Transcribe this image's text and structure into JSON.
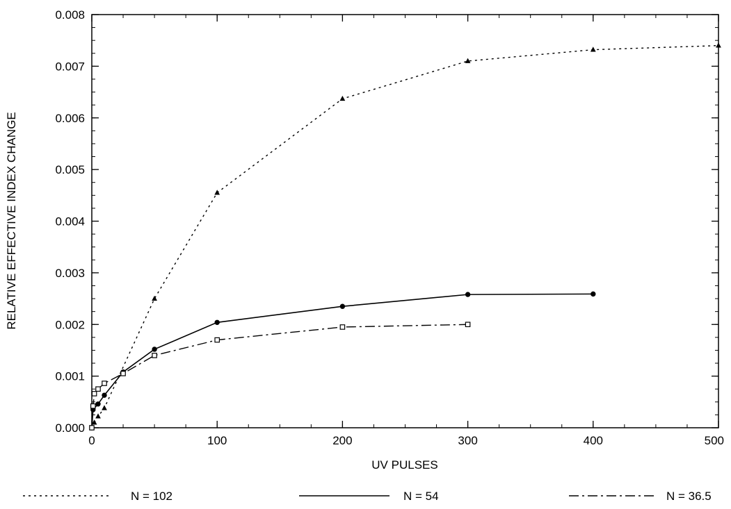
{
  "chart_data": {
    "type": "line",
    "title": "",
    "xlabel": "UV PULSES",
    "ylabel": "RELATIVE EFFECTIVE INDEX CHANGE",
    "xlim": [
      0,
      500
    ],
    "ylim": [
      0,
      0.008
    ],
    "x_ticks": [
      0,
      100,
      200,
      300,
      400,
      500
    ],
    "x_tick_labels": [
      "0",
      "100",
      "200",
      "300",
      "400",
      "500"
    ],
    "y_ticks": [
      0,
      0.001,
      0.002,
      0.003,
      0.004,
      0.005,
      0.006,
      0.007,
      0.008
    ],
    "y_tick_labels": [
      "0.000",
      "0.001",
      "0.002",
      "0.003",
      "0.004",
      "0.005",
      "0.006",
      "0.007",
      "0.008"
    ],
    "grid": false,
    "legend_position": "bottom",
    "series": [
      {
        "name": "N = 102",
        "line_style": "dotted",
        "marker": "triangle",
        "x": [
          0,
          2,
          5,
          10,
          50,
          100,
          200,
          300,
          400,
          500
        ],
        "y": [
          0.0,
          0.0001,
          0.00022,
          0.00038,
          0.0025,
          0.00455,
          0.00637,
          0.0071,
          0.00732,
          0.0074
        ]
      },
      {
        "name": "N = 54",
        "line_style": "solid",
        "marker": "circle",
        "x": [
          0,
          1,
          5,
          10,
          25,
          50,
          100,
          200,
          300,
          400
        ],
        "y": [
          0.0,
          0.00035,
          0.00046,
          0.00063,
          0.00108,
          0.00152,
          0.00204,
          0.00235,
          0.00258,
          0.00259
        ]
      },
      {
        "name": "N = 36.5",
        "line_style": "dashdot",
        "marker": "square",
        "x": [
          0,
          1,
          2,
          5,
          10,
          25,
          50,
          100,
          200,
          300
        ],
        "y": [
          0.0,
          0.00042,
          0.00066,
          0.00075,
          0.00086,
          0.00105,
          0.0014,
          0.0017,
          0.00195,
          0.002
        ]
      }
    ]
  }
}
